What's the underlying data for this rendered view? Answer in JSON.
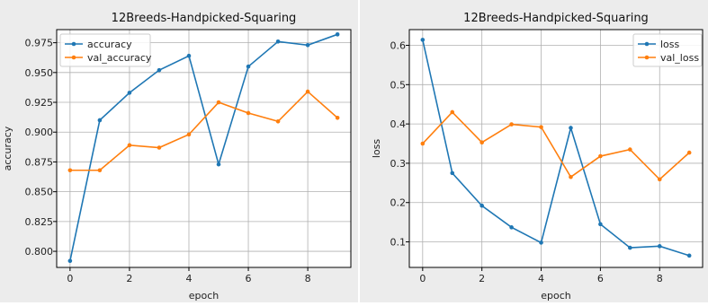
{
  "chart_data": [
    {
      "type": "line",
      "title": "12Breeds-Handpicked-Squaring",
      "xlabel": "epoch",
      "ylabel": "accuracy",
      "x": [
        0,
        1,
        2,
        3,
        4,
        5,
        6,
        7,
        8,
        9
      ],
      "xlim": [
        -0.45,
        9.45
      ],
      "ylim": [
        0.7865,
        0.986
      ],
      "xticks": [
        0,
        2,
        4,
        6,
        8
      ],
      "yticks": [
        0.8,
        0.825,
        0.85,
        0.875,
        0.9,
        0.925,
        0.95,
        0.975
      ],
      "ytick_labels": [
        "0.800",
        "0.825",
        "0.850",
        "0.875",
        "0.900",
        "0.925",
        "0.950",
        "0.975"
      ],
      "grid": true,
      "legend_position": "top-left",
      "series": [
        {
          "name": "accuracy",
          "color": "#1f77b4",
          "values": [
            0.792,
            0.91,
            0.933,
            0.952,
            0.964,
            0.873,
            0.955,
            0.976,
            0.973,
            0.982
          ]
        },
        {
          "name": "val_accuracy",
          "color": "#ff7f0e",
          "values": [
            0.868,
            0.868,
            0.889,
            0.887,
            0.898,
            0.925,
            0.916,
            0.909,
            0.934,
            0.912
          ]
        }
      ]
    },
    {
      "type": "line",
      "title": "12Breeds-Handpicked-Squaring",
      "xlabel": "epoch",
      "ylabel": "loss",
      "x": [
        0,
        1,
        2,
        3,
        4,
        5,
        6,
        7,
        8,
        9
      ],
      "xlim": [
        -0.45,
        9.45
      ],
      "ylim": [
        0.035,
        0.64
      ],
      "xticks": [
        0,
        2,
        4,
        6,
        8
      ],
      "yticks": [
        0.1,
        0.2,
        0.3,
        0.4,
        0.5,
        0.6
      ],
      "ytick_labels": [
        "0.1",
        "0.2",
        "0.3",
        "0.4",
        "0.5",
        "0.6"
      ],
      "grid": true,
      "legend_position": "top-right",
      "series": [
        {
          "name": "loss",
          "color": "#1f77b4",
          "values": [
            0.614,
            0.275,
            0.192,
            0.137,
            0.098,
            0.39,
            0.145,
            0.085,
            0.089,
            0.065
          ]
        },
        {
          "name": "val_loss",
          "color": "#ff7f0e",
          "values": [
            0.35,
            0.43,
            0.353,
            0.399,
            0.392,
            0.265,
            0.318,
            0.335,
            0.259,
            0.327
          ]
        }
      ]
    }
  ]
}
